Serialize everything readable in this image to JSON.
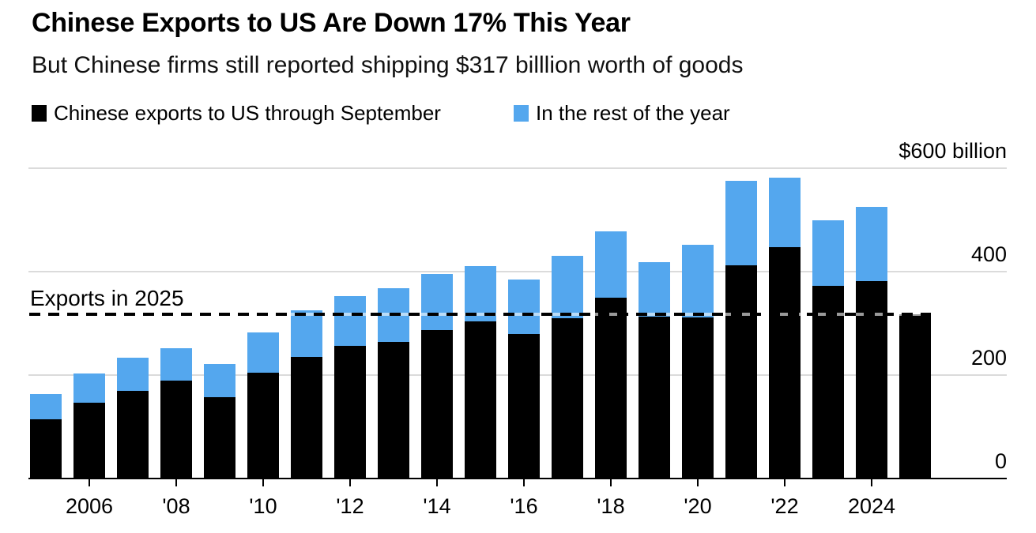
{
  "header": {
    "title": "Chinese Exports to US Are Down 17% This Year",
    "subtitle": "But Chinese firms still reported shipping $317 billlion worth of goods"
  },
  "legend": [
    {
      "label": "Chinese exports to US through September",
      "color": "#000000"
    },
    {
      "label": "In the rest of the year",
      "color": "#54A7EE"
    }
  ],
  "annotation": {
    "label": "Exports in 2025",
    "value": 317
  },
  "colors": {
    "bar_black": "#000000",
    "bar_blue": "#54A7EE",
    "grid": "#DBDBDB",
    "axis": "#000000",
    "dash": "#000000",
    "dash_underlay": "rgba(255,255,255,0.6)"
  },
  "chart_data": {
    "type": "bar",
    "stacked": true,
    "title": "Chinese Exports to US Are Down 17% This Year",
    "xlabel": "",
    "ylabel": "$ billion",
    "ylim": [
      0,
      600
    ],
    "grid": true,
    "legend_position": "top",
    "units": "USD billions",
    "categories": [
      2005,
      2006,
      2007,
      2008,
      2009,
      2010,
      2011,
      2012,
      2013,
      2014,
      2015,
      2016,
      2017,
      2018,
      2019,
      2020,
      2021,
      2022,
      2023,
      2024,
      2025
    ],
    "series": [
      {
        "name": "Chinese exports to US through September",
        "color": "#000000",
        "values": [
          115,
          146,
          170,
          189,
          157,
          205,
          235,
          257,
          264,
          287,
          304,
          280,
          310,
          349,
          313,
          311,
          412,
          448,
          372,
          382,
          317
        ]
      },
      {
        "name": "In the rest of the year",
        "color": "#54A7EE",
        "values": [
          48,
          57,
          63,
          63,
          64,
          78,
          90,
          95,
          104,
          109,
          106,
          105,
          120,
          129,
          106,
          141,
          164,
          134,
          128,
          143,
          0
        ]
      }
    ],
    "totals": [
      163,
      203,
      233,
      252,
      221,
      283,
      325,
      352,
      368,
      396,
      410,
      385,
      430,
      478,
      419,
      452,
      576,
      582,
      500,
      525,
      317
    ],
    "y_ticks": [
      {
        "value": 600,
        "label": "$600 billion"
      },
      {
        "value": 400,
        "label": "400"
      },
      {
        "value": 200,
        "label": "200"
      },
      {
        "value": 0,
        "label": "0"
      }
    ],
    "x_ticks": [
      {
        "year": 2006,
        "label": "2006"
      },
      {
        "year": 2008,
        "label": "'08"
      },
      {
        "year": 2010,
        "label": "'10"
      },
      {
        "year": 2012,
        "label": "'12"
      },
      {
        "year": 2014,
        "label": "'14"
      },
      {
        "year": 2016,
        "label": "'16"
      },
      {
        "year": 2018,
        "label": "'18"
      },
      {
        "year": 2020,
        "label": "'20"
      },
      {
        "year": 2022,
        "label": "'22"
      },
      {
        "year": 2024,
        "label": "2024"
      }
    ],
    "reference_line": {
      "label": "Exports in 2025",
      "value": 317
    }
  }
}
